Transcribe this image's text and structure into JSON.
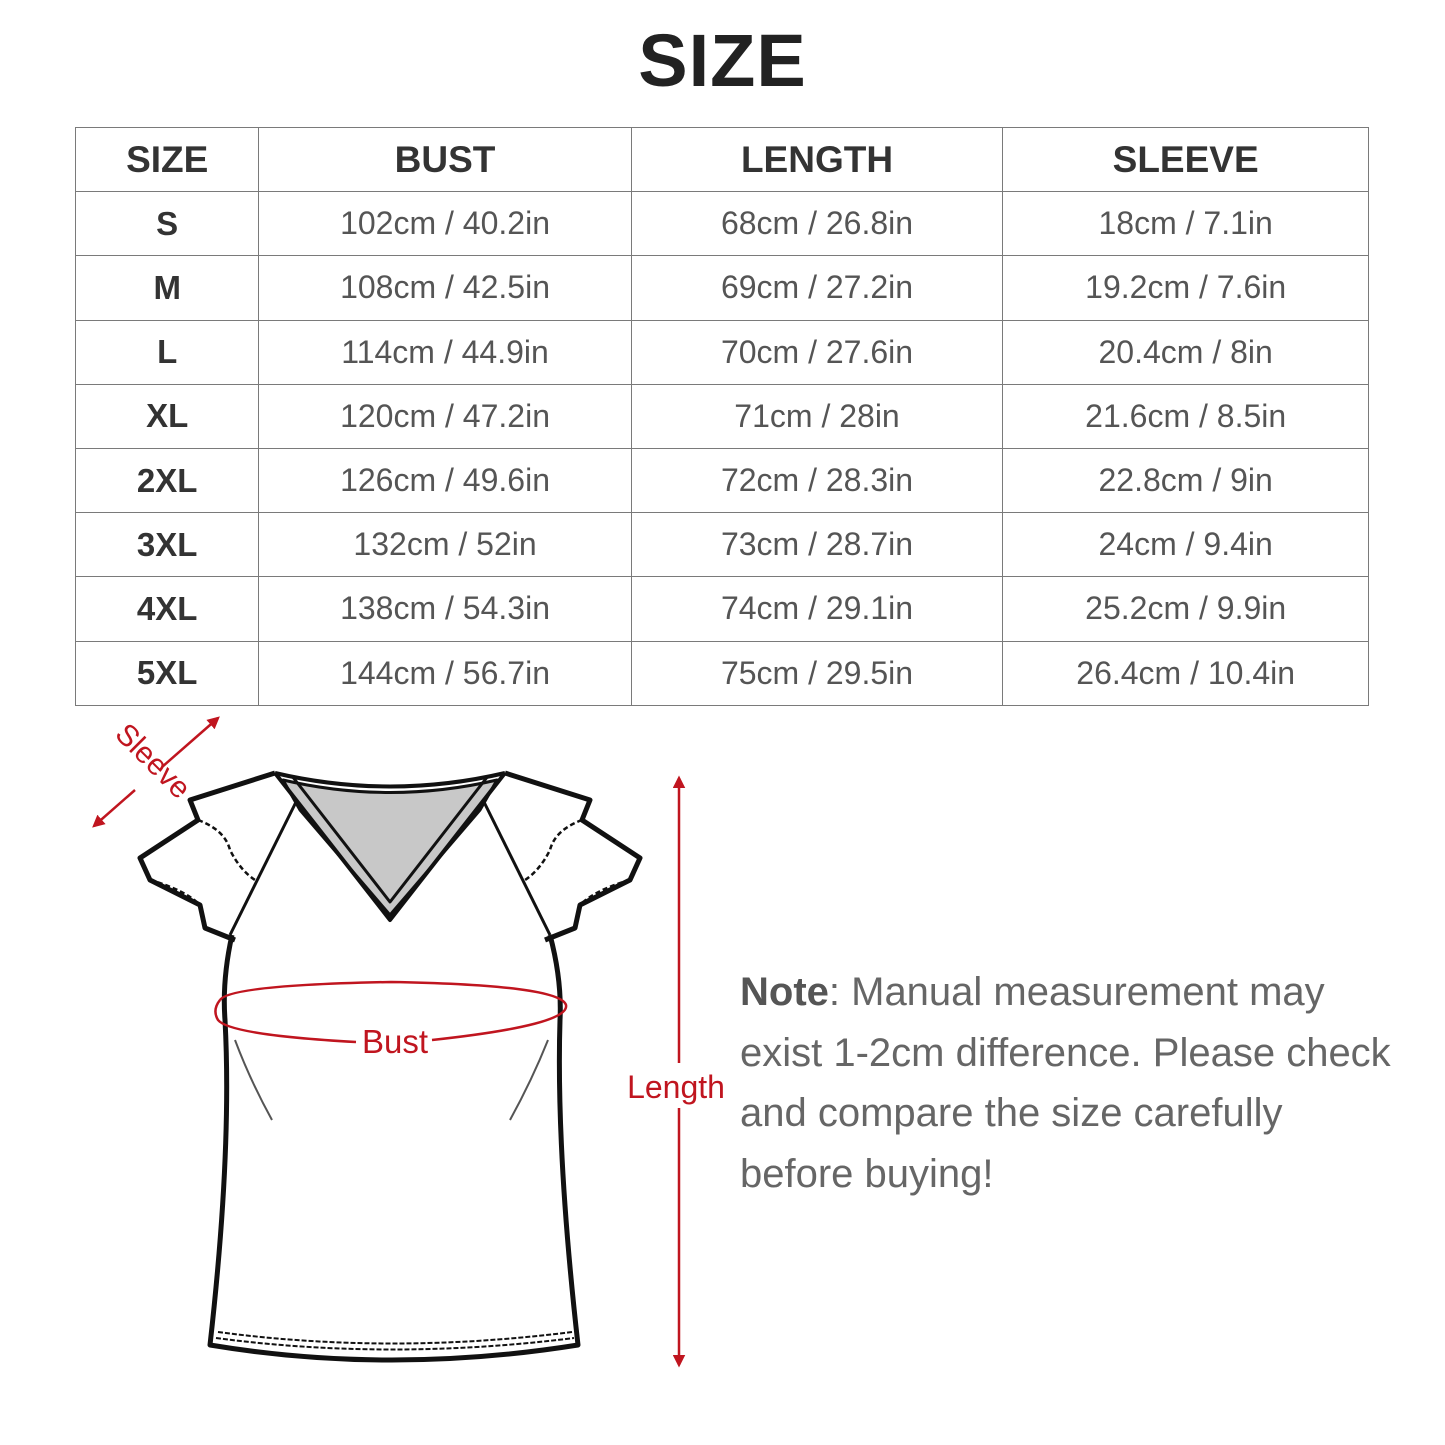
{
  "title": "SIZE",
  "table": {
    "headers": [
      "SIZE",
      "BUST",
      "LENGTH",
      "SLEEVE"
    ],
    "rows": [
      [
        "S",
        "102cm / 40.2in",
        "68cm / 26.8in",
        "18cm / 7.1in"
      ],
      [
        "M",
        "108cm / 42.5in",
        "69cm / 27.2in",
        "19.2cm / 7.6in"
      ],
      [
        "L",
        "114cm / 44.9in",
        "70cm / 27.6in",
        "20.4cm / 8in"
      ],
      [
        "XL",
        "120cm / 47.2in",
        "71cm / 28in",
        "21.6cm / 8.5in"
      ],
      [
        "2XL",
        "126cm / 49.6in",
        "72cm / 28.3in",
        "22.8cm / 9in"
      ],
      [
        "3XL",
        "132cm / 52in",
        "73cm / 28.7in",
        "24cm / 9.4in"
      ],
      [
        "4XL",
        "138cm / 54.3in",
        "74cm / 29.1in",
        "25.2cm / 9.9in"
      ],
      [
        "5XL",
        "144cm / 56.7in",
        "75cm / 29.5in",
        "26.4cm / 10.4in"
      ]
    ]
  },
  "diagram": {
    "sleeve_label": "Sleeve",
    "bust_label": "Bust",
    "length_label": "Length",
    "accent_color": "#c0151f"
  },
  "note": {
    "label": "Note",
    "text": ": Manual measurement may exist 1-2cm difference. Please check and compare the size carefully before buying!"
  }
}
